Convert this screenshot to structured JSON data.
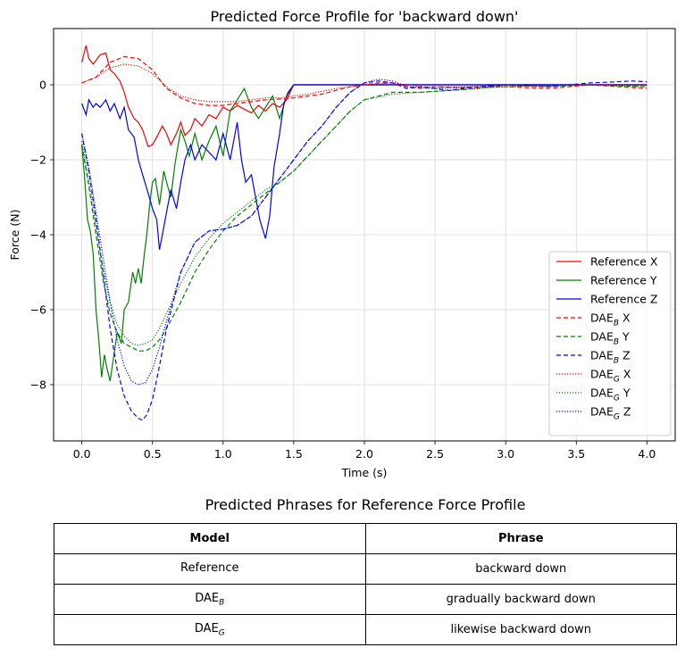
{
  "chart_data": {
    "type": "line",
    "title": "Predicted Force Profile for 'backward down'",
    "xlabel": "Time (s)",
    "ylabel": "Force (N)",
    "xlim": [
      -0.2,
      4.2
    ],
    "ylim": [
      -9.5,
      1.5
    ],
    "xticks": [
      0.0,
      0.5,
      1.0,
      1.5,
      2.0,
      2.5,
      3.0,
      3.5,
      4.0
    ],
    "xtick_labels": [
      "0.0",
      "0.5",
      "1.0",
      "1.5",
      "2.0",
      "2.5",
      "3.0",
      "3.5",
      "4.0"
    ],
    "yticks": [
      0,
      -2,
      -4,
      -6,
      -8
    ],
    "ytick_labels": [
      "0",
      "−2",
      "−4",
      "−6",
      "−8"
    ],
    "grid": true,
    "legend_position": "lower-right",
    "series": [
      {
        "label": "Reference X",
        "color": "#ff0000",
        "style": "solid",
        "x": [
          0.0,
          0.03,
          0.05,
          0.08,
          0.1,
          0.13,
          0.17,
          0.2,
          0.23,
          0.27,
          0.3,
          0.33,
          0.37,
          0.4,
          0.43,
          0.47,
          0.5,
          0.53,
          0.57,
          0.6,
          0.63,
          0.67,
          0.7,
          0.73,
          0.77,
          0.8,
          0.85,
          0.9,
          0.95,
          1.0,
          1.05,
          1.1,
          1.15,
          1.2,
          1.25,
          1.3,
          1.35,
          1.4,
          1.45,
          1.5,
          4.0
        ],
        "y": [
          0.6,
          1.05,
          0.7,
          0.55,
          0.65,
          0.8,
          0.85,
          0.4,
          0.3,
          0.1,
          -0.2,
          -0.6,
          -0.9,
          -1.0,
          -1.2,
          -1.65,
          -1.6,
          -1.4,
          -1.1,
          -1.3,
          -1.6,
          -1.3,
          -1.0,
          -1.35,
          -1.2,
          -0.9,
          -1.1,
          -0.8,
          -0.9,
          -0.6,
          -0.7,
          -0.55,
          -0.65,
          -0.75,
          -0.55,
          -0.7,
          -0.5,
          -0.6,
          -0.4,
          0.0,
          0.0
        ]
      },
      {
        "label": "Reference Y",
        "color": "#008000",
        "style": "solid",
        "x": [
          0.0,
          0.02,
          0.04,
          0.06,
          0.08,
          0.1,
          0.12,
          0.14,
          0.16,
          0.18,
          0.2,
          0.22,
          0.25,
          0.28,
          0.3,
          0.33,
          0.36,
          0.38,
          0.4,
          0.42,
          0.44,
          0.46,
          0.48,
          0.5,
          0.52,
          0.55,
          0.58,
          0.6,
          0.63,
          0.66,
          0.7,
          0.73,
          0.76,
          0.8,
          0.85,
          0.9,
          0.95,
          1.0,
          1.05,
          1.1,
          1.15,
          1.2,
          1.25,
          1.3,
          1.35,
          1.4,
          1.45,
          1.5,
          4.0
        ],
        "y": [
          -1.6,
          -2.5,
          -3.6,
          -3.9,
          -4.5,
          -6.0,
          -6.8,
          -7.8,
          -7.2,
          -7.6,
          -7.9,
          -7.4,
          -6.6,
          -6.9,
          -6.0,
          -5.8,
          -5.0,
          -5.3,
          -4.9,
          -5.3,
          -4.6,
          -4.0,
          -3.2,
          -2.6,
          -2.5,
          -3.2,
          -2.3,
          -2.6,
          -3.0,
          -2.1,
          -1.2,
          -1.5,
          -1.9,
          -1.3,
          -2.0,
          -1.5,
          -1.1,
          -1.9,
          -0.7,
          -0.4,
          -0.1,
          -0.6,
          -0.9,
          -0.6,
          -0.3,
          -0.9,
          -0.3,
          0.0,
          0.0
        ]
      },
      {
        "label": "Reference Z",
        "color": "#0000ff",
        "style": "solid",
        "x": [
          0.0,
          0.03,
          0.05,
          0.08,
          0.1,
          0.13,
          0.17,
          0.2,
          0.23,
          0.27,
          0.3,
          0.33,
          0.37,
          0.4,
          0.43,
          0.47,
          0.5,
          0.53,
          0.55,
          0.58,
          0.6,
          0.63,
          0.67,
          0.7,
          0.73,
          0.77,
          0.8,
          0.85,
          0.9,
          0.95,
          1.0,
          1.05,
          1.1,
          1.13,
          1.16,
          1.2,
          1.23,
          1.26,
          1.3,
          1.33,
          1.36,
          1.4,
          1.43,
          1.46,
          1.5,
          4.0
        ],
        "y": [
          -0.5,
          -0.8,
          -0.4,
          -0.6,
          -0.5,
          -0.6,
          -0.4,
          -0.7,
          -0.5,
          -0.9,
          -0.6,
          -1.2,
          -1.4,
          -2.0,
          -2.4,
          -2.9,
          -3.3,
          -3.6,
          -4.4,
          -3.8,
          -3.4,
          -2.8,
          -3.3,
          -2.6,
          -2.0,
          -1.6,
          -2.0,
          -1.6,
          -1.8,
          -2.0,
          -1.3,
          -2.0,
          -1.0,
          -2.0,
          -2.6,
          -2.4,
          -3.0,
          -3.6,
          -4.1,
          -3.5,
          -2.2,
          -1.3,
          -0.5,
          -0.2,
          0.0,
          0.0
        ]
      },
      {
        "label": "DAE_B X",
        "color": "#ff0000",
        "style": "dashed",
        "x": [
          0.0,
          0.1,
          0.2,
          0.3,
          0.4,
          0.5,
          0.6,
          0.7,
          0.8,
          0.9,
          1.0,
          1.1,
          1.2,
          1.3,
          1.4,
          1.5,
          1.6,
          1.7,
          1.8,
          1.9,
          2.0,
          2.1,
          2.2,
          2.3,
          2.4,
          2.5,
          2.7,
          3.0,
          3.3,
          3.6,
          3.8,
          4.0
        ],
        "y": [
          0.05,
          0.2,
          0.6,
          0.75,
          0.7,
          0.4,
          -0.1,
          -0.35,
          -0.5,
          -0.55,
          -0.55,
          -0.5,
          -0.45,
          -0.4,
          -0.38,
          -0.35,
          -0.3,
          -0.25,
          -0.15,
          -0.05,
          0.0,
          0.05,
          0.05,
          -0.05,
          -0.1,
          -0.05,
          -0.08,
          -0.05,
          -0.1,
          0.0,
          -0.05,
          -0.1
        ]
      },
      {
        "label": "DAE_B Y",
        "color": "#008000",
        "style": "dashed",
        "x": [
          0.0,
          0.05,
          0.1,
          0.15,
          0.2,
          0.25,
          0.3,
          0.35,
          0.4,
          0.45,
          0.5,
          0.55,
          0.6,
          0.7,
          0.8,
          0.9,
          1.0,
          1.1,
          1.2,
          1.3,
          1.4,
          1.5,
          1.6,
          1.7,
          1.8,
          1.9,
          2.0,
          2.1,
          2.2,
          2.4,
          2.6,
          2.8,
          3.0,
          3.3,
          3.6,
          4.0
        ],
        "y": [
          -1.6,
          -2.7,
          -4.0,
          -5.2,
          -6.1,
          -6.6,
          -6.9,
          -7.0,
          -7.1,
          -7.1,
          -7.0,
          -6.8,
          -6.5,
          -5.8,
          -5.0,
          -4.4,
          -3.9,
          -3.5,
          -3.2,
          -2.9,
          -2.6,
          -2.3,
          -1.9,
          -1.5,
          -1.1,
          -0.7,
          -0.4,
          -0.3,
          -0.2,
          -0.2,
          -0.15,
          -0.1,
          0.0,
          -0.05,
          0.0,
          -0.05
        ]
      },
      {
        "label": "DAE_B Z",
        "color": "#0000ff",
        "style": "dashed",
        "x": [
          0.0,
          0.05,
          0.1,
          0.15,
          0.2,
          0.25,
          0.3,
          0.35,
          0.4,
          0.43,
          0.46,
          0.5,
          0.55,
          0.6,
          0.7,
          0.8,
          0.9,
          1.0,
          1.1,
          1.2,
          1.3,
          1.4,
          1.5,
          1.6,
          1.7,
          1.8,
          1.9,
          2.0,
          2.1,
          2.2,
          2.3,
          2.4,
          2.6,
          2.8,
          3.0,
          3.3,
          3.6,
          3.9,
          4.0
        ],
        "y": [
          -1.3,
          -2.3,
          -3.6,
          -5.0,
          -6.5,
          -7.6,
          -8.3,
          -8.7,
          -8.9,
          -8.95,
          -8.8,
          -8.4,
          -7.5,
          -6.5,
          -5.0,
          -4.2,
          -3.9,
          -3.85,
          -3.75,
          -3.5,
          -3.0,
          -2.5,
          -2.0,
          -1.5,
          -1.1,
          -0.6,
          -0.2,
          0.05,
          0.1,
          0.05,
          -0.1,
          -0.05,
          -0.15,
          -0.05,
          0.0,
          -0.05,
          0.05,
          0.1,
          0.08
        ]
      },
      {
        "label": "DAE_G X",
        "color": "#ff0000",
        "style": "dotted",
        "x": [
          0.0,
          0.1,
          0.2,
          0.3,
          0.4,
          0.5,
          0.6,
          0.7,
          0.8,
          0.9,
          1.0,
          1.1,
          1.2,
          1.3,
          1.4,
          1.5,
          1.6,
          1.8,
          2.0,
          2.2,
          2.4,
          2.6,
          3.0,
          3.5,
          4.0
        ],
        "y": [
          0.05,
          0.2,
          0.45,
          0.55,
          0.5,
          0.3,
          -0.05,
          -0.3,
          -0.4,
          -0.45,
          -0.45,
          -0.45,
          -0.4,
          -0.35,
          -0.35,
          -0.3,
          -0.25,
          -0.1,
          0.0,
          0.05,
          -0.05,
          -0.05,
          -0.05,
          0.0,
          0.0
        ]
      },
      {
        "label": "DAE_G Y",
        "color": "#008000",
        "style": "dotted",
        "x": [
          0.0,
          0.05,
          0.1,
          0.15,
          0.2,
          0.25,
          0.3,
          0.35,
          0.4,
          0.45,
          0.5,
          0.55,
          0.6,
          0.7,
          0.8,
          0.9,
          1.0,
          1.1,
          1.2,
          1.3,
          1.4,
          1.5,
          1.6,
          1.7,
          1.8,
          1.9,
          2.0,
          2.2,
          2.4,
          2.6,
          3.0,
          3.5,
          4.0
        ],
        "y": [
          -1.5,
          -2.6,
          -3.8,
          -4.9,
          -5.8,
          -6.4,
          -6.7,
          -6.9,
          -6.95,
          -6.9,
          -6.8,
          -6.5,
          -6.1,
          -5.3,
          -4.6,
          -4.1,
          -3.7,
          -3.4,
          -3.1,
          -2.8,
          -2.6,
          -2.3,
          -1.9,
          -1.5,
          -1.1,
          -0.7,
          -0.4,
          -0.25,
          -0.2,
          -0.15,
          -0.05,
          0.0,
          -0.05
        ]
      },
      {
        "label": "DAE_G Z",
        "color": "#0000ff",
        "style": "dotted",
        "x": [
          0.0,
          0.05,
          0.1,
          0.15,
          0.2,
          0.25,
          0.3,
          0.35,
          0.4,
          0.45,
          0.5,
          0.55,
          0.6,
          0.7,
          0.8,
          0.9,
          1.0,
          1.1,
          1.2,
          1.3,
          1.4,
          1.5,
          1.6,
          1.7,
          1.8,
          1.9,
          2.0,
          2.1,
          2.2,
          2.3,
          2.5,
          2.8,
          3.0,
          3.5,
          4.0
        ],
        "y": [
          -1.3,
          -2.2,
          -3.4,
          -4.6,
          -5.8,
          -6.8,
          -7.5,
          -7.9,
          -8.0,
          -7.95,
          -7.6,
          -7.0,
          -6.3,
          -5.0,
          -4.2,
          -3.9,
          -3.85,
          -3.75,
          -3.5,
          -3.0,
          -2.5,
          -2.0,
          -1.5,
          -1.1,
          -0.6,
          -0.2,
          0.05,
          0.15,
          0.1,
          -0.05,
          -0.1,
          -0.05,
          0.0,
          0.0,
          0.0
        ]
      }
    ]
  },
  "legend": [
    {
      "main": "Reference X",
      "sub": "",
      "suffix": "",
      "color": "#ff0000",
      "dash": "solid"
    },
    {
      "main": "Reference Y",
      "sub": "",
      "suffix": "",
      "color": "#008000",
      "dash": "solid"
    },
    {
      "main": "Reference Z",
      "sub": "",
      "suffix": "",
      "color": "#0000ff",
      "dash": "solid"
    },
    {
      "main": "DAE",
      "sub": "B",
      "suffix": " X",
      "color": "#ff0000",
      "dash": "dashed"
    },
    {
      "main": "DAE",
      "sub": "B",
      "suffix": " Y",
      "color": "#008000",
      "dash": "dashed"
    },
    {
      "main": "DAE",
      "sub": "B",
      "suffix": " Z",
      "color": "#0000ff",
      "dash": "dashed"
    },
    {
      "main": "DAE",
      "sub": "G",
      "suffix": " X",
      "color": "#ff0000",
      "dash": "dotted"
    },
    {
      "main": "DAE",
      "sub": "G",
      "suffix": " Y",
      "color": "#008000",
      "dash": "dotted"
    },
    {
      "main": "DAE",
      "sub": "G",
      "suffix": " Z",
      "color": "#0000ff",
      "dash": "dotted"
    }
  ],
  "table": {
    "title": "Predicted Phrases for Reference Force Profile",
    "header_model": "Model",
    "header_phrase": "Phrase",
    "rows": [
      {
        "model": "Reference",
        "model_sub": "",
        "phrase": "backward down"
      },
      {
        "model": "DAE",
        "model_sub": "B",
        "phrase": "gradually backward down"
      },
      {
        "model": "DAE",
        "model_sub": "G",
        "phrase": "likewise backward down"
      }
    ]
  }
}
